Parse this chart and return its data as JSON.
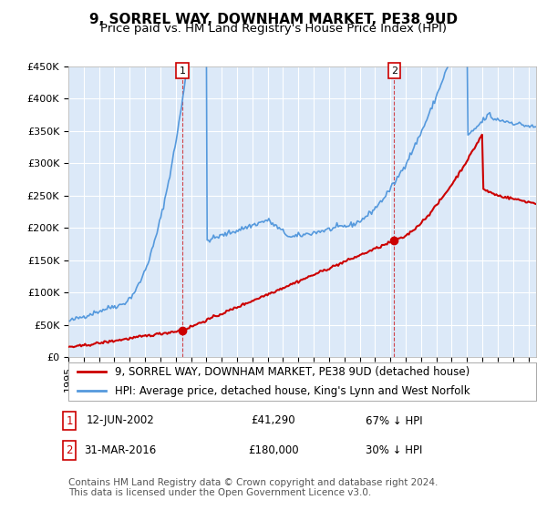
{
  "title": "9, SORREL WAY, DOWNHAM MARKET, PE38 9UD",
  "subtitle": "Price paid vs. HM Land Registry's House Price Index (HPI)",
  "red_label": "9, SORREL WAY, DOWNHAM MARKET, PE38 9UD (detached house)",
  "blue_label": "HPI: Average price, detached house, King's Lynn and West Norfolk",
  "footnote1": "Contains HM Land Registry data © Crown copyright and database right 2024.",
  "footnote2": "This data is licensed under the Open Government Licence v3.0.",
  "annotation1_box": "1",
  "annotation1_date": "12-JUN-2002",
  "annotation1_price": "£41,290",
  "annotation1_hpi": "67% ↓ HPI",
  "annotation2_box": "2",
  "annotation2_date": "31-MAR-2016",
  "annotation2_price": "£180,000",
  "annotation2_hpi": "30% ↓ HPI",
  "sale1_year": 2002.44,
  "sale1_price": 41290,
  "sale2_year": 2016.25,
  "sale2_price": 180000,
  "vline1_year": 2002.44,
  "vline2_year": 2016.25,
  "ylim": [
    0,
    450000
  ],
  "xlim_start": 1995,
  "xlim_end": 2025.5,
  "background_color": "#ffffff",
  "plot_bg_color": "#dce9f8",
  "grid_color": "#ffffff",
  "red_color": "#cc0000",
  "blue_color": "#5599dd",
  "vline_color": "#cc0000",
  "title_fontsize": 11,
  "subtitle_fontsize": 9.5,
  "tick_fontsize": 8,
  "legend_fontsize": 8.5,
  "annotation_fontsize": 8.5,
  "footnote_fontsize": 7.5
}
